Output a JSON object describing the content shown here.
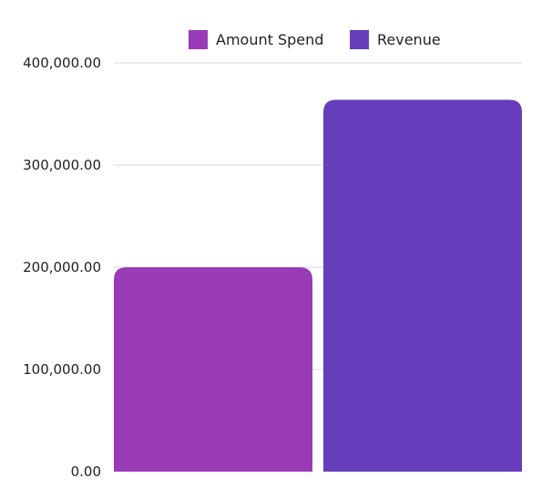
{
  "chart_data": {
    "type": "bar",
    "categories": [
      ""
    ],
    "series": [
      {
        "name": "Amount Spend",
        "values": [
          200000
        ],
        "color": "#993AB6"
      },
      {
        "name": "Revenue",
        "values": [
          364000
        ],
        "color": "#663DBA"
      }
    ],
    "y_ticks": [
      {
        "value": 0,
        "label": "0.00"
      },
      {
        "value": 100000,
        "label": "100,000.00"
      },
      {
        "value": 200000,
        "label": "200,000.00"
      },
      {
        "value": 300000,
        "label": "300,000.00"
      },
      {
        "value": 400000,
        "label": "400,000.00"
      }
    ],
    "ylim": [
      0,
      400000
    ],
    "grid": true,
    "legend_position": "top",
    "gridline_color": "#d9d9d9"
  }
}
